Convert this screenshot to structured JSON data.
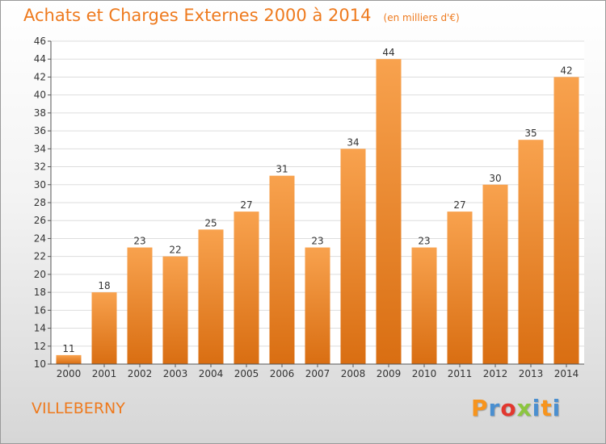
{
  "header": {
    "title": "Achats et Charges Externes 2000 à 2014",
    "subtitle": "(en milliers d'€)"
  },
  "footer": {
    "commune": "VILLEBERNY",
    "logo_text": "Proxiti",
    "logo_colors": [
      "#f7941d",
      "#4a8fd0",
      "#e2382f",
      "#8cc63f",
      "#4a8fd0",
      "#f7941d",
      "#4a8fd0"
    ]
  },
  "colors": {
    "bar_top": "#f8a24e",
    "bar_bottom": "#d96e12",
    "accent": "#ee7a1e"
  },
  "chart_data": {
    "type": "bar",
    "title": "Achats et Charges Externes 2000 à 2014",
    "subtitle": "(en milliers d'€)",
    "categories": [
      "2000",
      "2001",
      "2002",
      "2003",
      "2004",
      "2005",
      "2006",
      "2007",
      "2008",
      "2009",
      "2010",
      "2011",
      "2012",
      "2013",
      "2014"
    ],
    "values": [
      11,
      18,
      23,
      22,
      25,
      27,
      31,
      23,
      34,
      44,
      23,
      27,
      30,
      35,
      42
    ],
    "ylim": [
      10,
      46
    ],
    "yticks": [
      10,
      12,
      14,
      16,
      18,
      20,
      22,
      24,
      26,
      28,
      30,
      32,
      34,
      36,
      38,
      40,
      42,
      44,
      46
    ],
    "grid": true,
    "legend": "none"
  }
}
